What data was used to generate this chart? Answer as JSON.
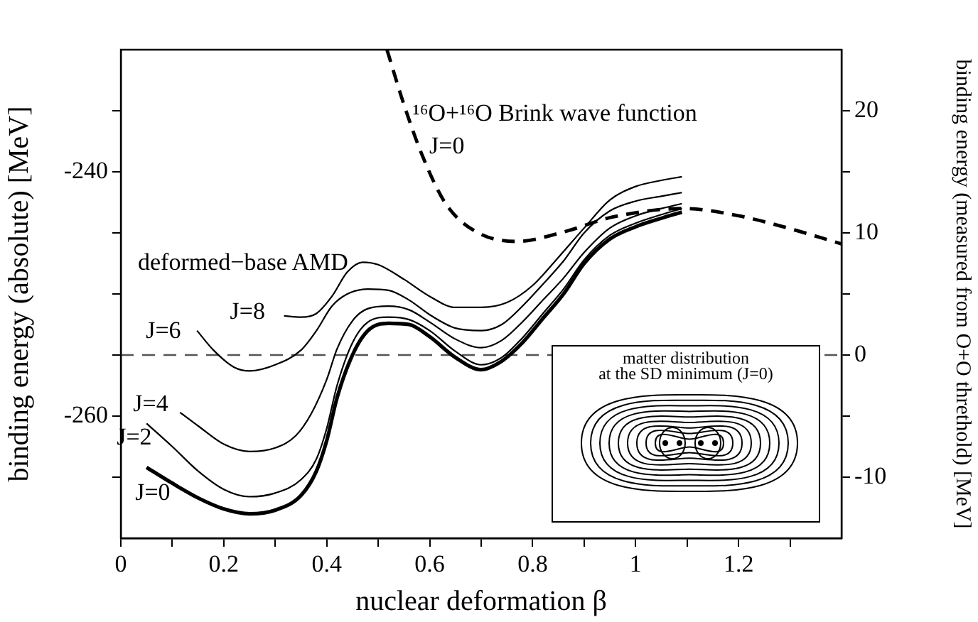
{
  "chart_data": {
    "type": "line",
    "xlabel": "nuclear deformation β",
    "ylabel": "binding energy (absolute) [MeV]",
    "y2label": "binding energy (measured from O+O threthold) [MeV]",
    "marker": "none",
    "legend": false,
    "xlim": [
      0,
      1.4
    ],
    "xticks": [
      0,
      {
        "value": 0.1,
        "label": null
      },
      0.2,
      {
        "value": 0.3,
        "label": null
      },
      0.4,
      {
        "value": 0.5,
        "label": null
      },
      0.6,
      {
        "value": 0.7,
        "label": null
      },
      0.8,
      {
        "value": 0.9,
        "label": null
      },
      1,
      {
        "value": 1.1,
        "label": null
      },
      1.2,
      {
        "value": 1.3,
        "label": null
      }
    ],
    "ylim": [
      -270,
      -230
    ],
    "yticks": [
      {
        "value": -265,
        "label": null
      },
      -260,
      {
        "value": -255,
        "label": null
      },
      {
        "value": -250,
        "label": null
      },
      {
        "value": -245,
        "label": null
      },
      -240,
      {
        "value": -235,
        "label": null
      }
    ],
    "y2lim": [
      -15,
      25
    ],
    "y2ticks": [
      -10,
      {
        "value": -5,
        "label": null
      },
      0,
      {
        "value": 5,
        "label": null
      },
      10,
      {
        "value": 15,
        "label": null
      },
      20
    ],
    "ref_lines": [
      {
        "axis": "y",
        "value": -255,
        "line_style": "dashed",
        "color": "#555555"
      }
    ],
    "annotations": [
      "deformed−base AMD",
      "J=0",
      "matter distribution",
      "at the SD minimum (J=0)"
    ],
    "series": [
      {
        "name": "J=0",
        "color": "#000000",
        "x": [
          0.05,
          0.1,
          0.15,
          0.2,
          0.25,
          0.3,
          0.35,
          0.38,
          0.4,
          0.42,
          0.45,
          0.48,
          0.52,
          0.56,
          0.6,
          0.65,
          0.7,
          0.74,
          0.78,
          0.82,
          0.86,
          0.9,
          0.95,
          1.0,
          1.05,
          1.09
        ],
        "values": [
          -264.2,
          -265.5,
          -266.7,
          -267.6,
          -268,
          -267.7,
          -266.5,
          -264.5,
          -262,
          -258.5,
          -255,
          -253,
          -252.4,
          -252.5,
          -253.5,
          -255.2,
          -256.2,
          -255.5,
          -254,
          -252,
          -250,
          -247.5,
          -245.5,
          -244.5,
          -243.8,
          -243.3
        ]
      },
      {
        "name": "J=2",
        "color": "#000000",
        "x": [
          0.05,
          0.1,
          0.15,
          0.2,
          0.25,
          0.3,
          0.35,
          0.38,
          0.4,
          0.42,
          0.45,
          0.48,
          0.52,
          0.56,
          0.6,
          0.65,
          0.7,
          0.74,
          0.78,
          0.82,
          0.86,
          0.9,
          0.95,
          1.0,
          1.05,
          1.09
        ],
        "values": [
          -260.6,
          -262.5,
          -264.5,
          -266,
          -266.6,
          -266.3,
          -265.2,
          -263.5,
          -261,
          -257.5,
          -254,
          -252.3,
          -251.9,
          -252.1,
          -253,
          -254.7,
          -255.8,
          -255.2,
          -253.6,
          -251.6,
          -249.6,
          -247.2,
          -245.2,
          -244.2,
          -243.5,
          -243
        ]
      },
      {
        "name": "J=4",
        "color": "#000000",
        "x": [
          0.115,
          0.15,
          0.2,
          0.25,
          0.3,
          0.34,
          0.37,
          0.4,
          0.42,
          0.45,
          0.48,
          0.52,
          0.56,
          0.6,
          0.65,
          0.7,
          0.74,
          0.78,
          0.82,
          0.86,
          0.9,
          0.95,
          1.0,
          1.05,
          1.09
        ],
        "values": [
          -259.7,
          -260.8,
          -262.3,
          -262.9,
          -262.6,
          -261.6,
          -259.8,
          -257,
          -254.5,
          -252.2,
          -251.2,
          -251,
          -251.3,
          -252.3,
          -253.7,
          -254.4,
          -253.8,
          -252.3,
          -250.5,
          -248.7,
          -246.6,
          -244.6,
          -243.6,
          -243,
          -242.6
        ]
      },
      {
        "name": "J=6",
        "color": "#000000",
        "x": [
          0.148,
          0.18,
          0.22,
          0.25,
          0.3,
          0.35,
          0.38,
          0.41,
          0.44,
          0.48,
          0.52,
          0.56,
          0.6,
          0.65,
          0.7,
          0.74,
          0.78,
          0.82,
          0.86,
          0.9,
          0.95,
          1.0,
          1.05,
          1.09
        ],
        "values": [
          -253,
          -254.6,
          -256,
          -256.3,
          -255.8,
          -254.6,
          -253,
          -251,
          -250,
          -249.6,
          -249.7,
          -250.5,
          -251.7,
          -252.8,
          -253,
          -252.5,
          -251,
          -249.2,
          -247.3,
          -245,
          -243.2,
          -242.4,
          -242,
          -241.7
        ]
      },
      {
        "name": "J=8",
        "color": "#000000",
        "x": [
          0.317,
          0.35,
          0.38,
          0.41,
          0.44,
          0.47,
          0.5,
          0.55,
          0.6,
          0.65,
          0.7,
          0.75,
          0.8,
          0.85,
          0.9,
          0.95,
          1.0,
          1.05,
          1.09
        ],
        "values": [
          -251.8,
          -251.9,
          -251.6,
          -250.2,
          -248.2,
          -247.4,
          -247.6,
          -248.8,
          -250.2,
          -251.1,
          -251.1,
          -250.7,
          -249.3,
          -247,
          -244.6,
          -242.3,
          -241.2,
          -240.7,
          -240.4
        ]
      },
      {
        "name": "¹⁶O+¹⁶O Brink wave function",
        "color": "#000000",
        "line_style": "dashed",
        "x": [
          0.517,
          0.55,
          0.586,
          0.631,
          0.69,
          0.769,
          0.862,
          0.955,
          1.093,
          1.2,
          1.287,
          1.4
        ],
        "values": [
          -230,
          -234.5,
          -238.7,
          -242.6,
          -244.9,
          -245.7,
          -244.9,
          -243.7,
          -243,
          -243.6,
          -244.5,
          -245.9
        ]
      }
    ]
  }
}
